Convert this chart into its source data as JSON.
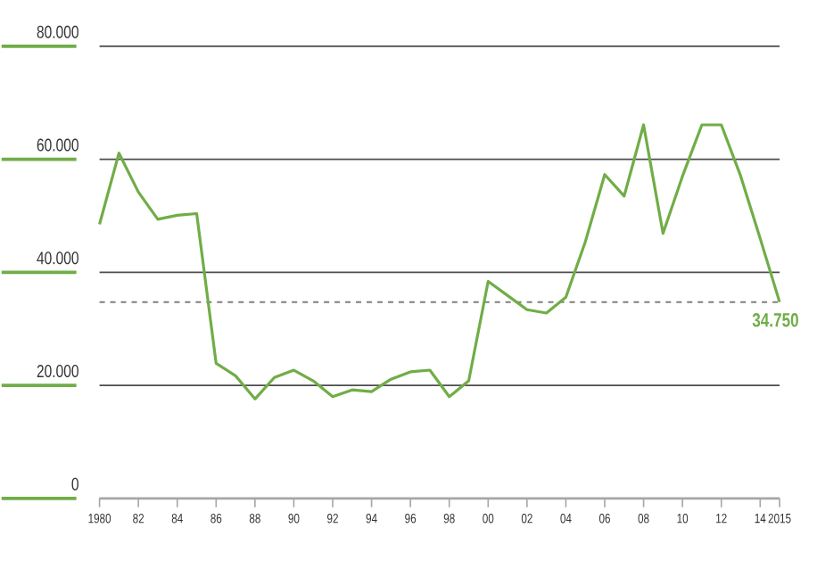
{
  "chart_data": {
    "type": "line",
    "x": [
      1980,
      1981,
      1982,
      1983,
      1984,
      1985,
      1986,
      1987,
      1988,
      1989,
      1990,
      1991,
      1992,
      1993,
      1994,
      1995,
      1996,
      1997,
      1998,
      1999,
      2000,
      2001,
      2002,
      2003,
      2004,
      2005,
      2006,
      2007,
      2008,
      2009,
      2010,
      2011,
      2012,
      2013,
      2014,
      2015
    ],
    "series": [
      {
        "color": "#70ad47",
        "values": [
          48500,
          61100,
          54200,
          49400,
          50100,
          50400,
          23900,
          21700,
          17600,
          21400,
          22700,
          20800,
          18000,
          19200,
          18900,
          21100,
          22400,
          22700,
          18000,
          20800,
          38400,
          35900,
          33400,
          32800,
          35600,
          45400,
          57300,
          53500,
          66100,
          46900,
          57000,
          66100,
          66100,
          57000,
          46000,
          34750
        ]
      }
    ],
    "xlim": [
      1980,
      2015
    ],
    "xticks": [
      {
        "value": 1980,
        "label": "1980"
      },
      {
        "value": 1982,
        "label": "82"
      },
      {
        "value": 1984,
        "label": "84"
      },
      {
        "value": 1986,
        "label": "86"
      },
      {
        "value": 1988,
        "label": "88"
      },
      {
        "value": 1990,
        "label": "90"
      },
      {
        "value": 1992,
        "label": "92"
      },
      {
        "value": 1994,
        "label": "94"
      },
      {
        "value": 1996,
        "label": "96"
      },
      {
        "value": 1998,
        "label": "98"
      },
      {
        "value": 2000,
        "label": "00"
      },
      {
        "value": 2002,
        "label": "02"
      },
      {
        "value": 2004,
        "label": "04"
      },
      {
        "value": 2006,
        "label": "06"
      },
      {
        "value": 2008,
        "label": "08"
      },
      {
        "value": 2010,
        "label": "10"
      },
      {
        "value": 2012,
        "label": "12"
      },
      {
        "value": 2014,
        "label": "14"
      },
      {
        "value": 2015,
        "label": "2015"
      }
    ],
    "ylim": [
      0,
      80000
    ],
    "yticks": [
      {
        "value": 0,
        "label": "0"
      },
      {
        "value": 20000,
        "label": "20.000"
      },
      {
        "value": 40000,
        "label": "40.000"
      },
      {
        "value": 60000,
        "label": "60.000"
      },
      {
        "value": 80000,
        "label": "80.000"
      }
    ],
    "grid": "y",
    "marker": "none",
    "line_style": "solid",
    "ref_lines": [
      {
        "axis": "y",
        "value": 34750,
        "color": "#7f7f7f",
        "line_style": "dashed"
      }
    ],
    "annotations": [
      {
        "text": "34.750",
        "x": 2015,
        "y": 34750
      }
    ]
  }
}
